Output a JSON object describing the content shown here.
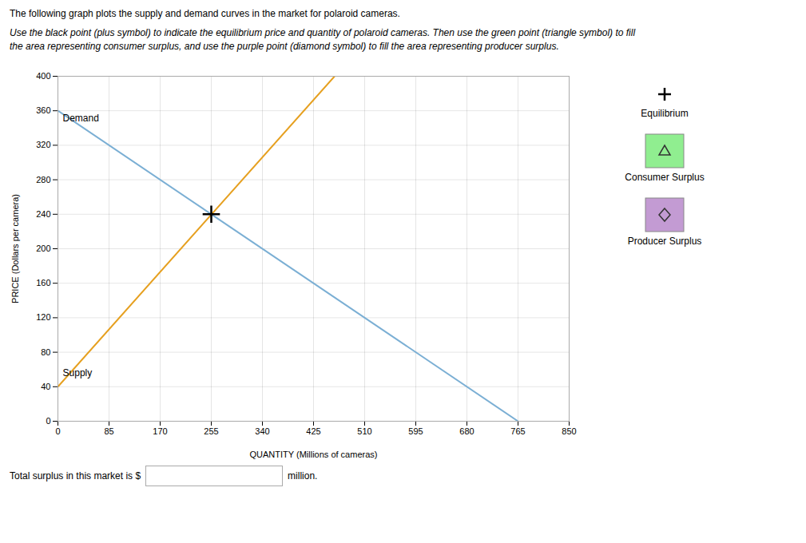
{
  "chart_data": {
    "type": "line",
    "title": "The following graph plots the supply and demand curves in the market for polaroid cameras.",
    "subtitle": [
      "Use the black point (plus symbol) to indicate the equilibrium price and quantity of polaroid cameras. Then use the green point (triangle symbol) to fill",
      "the area representing consumer surplus, and use the purple point (diamond symbol) to fill the area representing producer surplus."
    ],
    "xlabel": "QUANTITY (Millions of cameras)",
    "ylabel": "PRICE (Dollars per camera)",
    "xlim": [
      0,
      850
    ],
    "ylim": [
      0,
      400
    ],
    "xticks": [
      0,
      85,
      170,
      255,
      340,
      425,
      510,
      595,
      680,
      765,
      850
    ],
    "yticks": [
      0,
      40,
      80,
      120,
      160,
      200,
      240,
      280,
      320,
      360,
      400
    ],
    "grid": true,
    "legend": "right",
    "series": [
      {
        "name": "Demand",
        "type": "line",
        "color": "#7bafd4",
        "x": [
          0,
          765
        ],
        "values": [
          360,
          0
        ]
      },
      {
        "name": "Supply",
        "type": "line",
        "color": "#e6a020",
        "x": [
          0,
          460
        ],
        "values": [
          40,
          400
        ]
      },
      {
        "name": "Equilibrium",
        "type": "scatter",
        "marker": "plus",
        "color": "black",
        "x": [
          255
        ],
        "values": [
          240
        ]
      },
      {
        "name": "Consumer Surplus",
        "type": "area",
        "marker": "triangle",
        "color": "#90ee90",
        "x": [],
        "values": []
      },
      {
        "name": "Producer Surplus",
        "type": "area",
        "marker": "diamond",
        "color": "#c39bd3",
        "x": [],
        "values": []
      }
    ],
    "annotations": [
      {
        "text": "Demand",
        "x": 8,
        "y": 348
      },
      {
        "text": "Supply",
        "x": 8,
        "y": 52
      }
    ],
    "caption": [
      "Total surplus in this market is $",
      "million."
    ]
  }
}
